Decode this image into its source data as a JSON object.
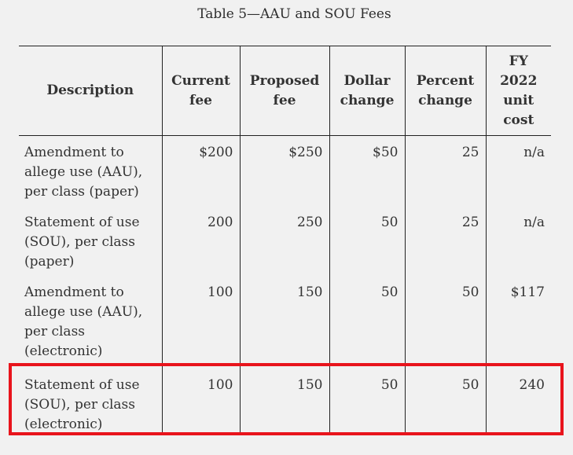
{
  "caption": "Table 5—AAU and SOU Fees",
  "columns": {
    "description": "Description",
    "current_fee": [
      "Current",
      "fee"
    ],
    "proposed_fee": [
      "Proposed",
      "fee"
    ],
    "dollar_change": [
      "Dollar",
      "change"
    ],
    "percent_change": [
      "Percent",
      "change"
    ],
    "unit_cost": [
      "FY",
      "2022",
      "unit",
      "cost"
    ]
  },
  "rows": [
    {
      "description": [
        "Amendment to",
        "allege use (AAU),",
        "per class (paper)"
      ],
      "current_fee": "$200",
      "proposed_fee": "$250",
      "dollar_change": "$50",
      "percent_change": "25",
      "unit_cost": "n/a"
    },
    {
      "description": [
        "Statement of use",
        "(SOU), per class",
        "(paper)"
      ],
      "current_fee": "200",
      "proposed_fee": "250",
      "dollar_change": "50",
      "percent_change": "25",
      "unit_cost": "n/a"
    },
    {
      "description": [
        "Amendment to",
        "allege use (AAU),",
        "per class",
        "(electronic)"
      ],
      "current_fee": "100",
      "proposed_fee": "150",
      "dollar_change": "50",
      "percent_change": "50",
      "unit_cost": "$117"
    },
    {
      "description": [
        "Statement of use",
        "(SOU), per class",
        "(electronic)"
      ],
      "current_fee": "100",
      "proposed_fee": "150",
      "dollar_change": "50",
      "percent_change": "50",
      "unit_cost": "240"
    }
  ],
  "highlight": {
    "row_index": 3,
    "color": "#e8141c"
  }
}
